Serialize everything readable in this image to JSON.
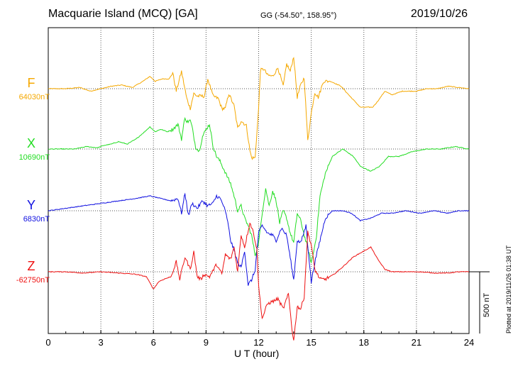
{
  "header": {
    "title": "Macquarie Island (MCQ)  [GA]",
    "coords": "GG (-54.50°, 158.95°)",
    "date": "2019/10/26"
  },
  "footer": {
    "xlabel": "U T (hour)",
    "plotted": "Plotted at 2019/11/26 01:38 UT",
    "scale_label": "500 nT"
  },
  "chart_data": {
    "type": "line",
    "title": "Macquarie Island (MCQ)  [GA]",
    "xlabel": "U T (hour)",
    "ylabel": "",
    "xlim": [
      0,
      24
    ],
    "x_ticks": [
      0,
      3,
      6,
      9,
      12,
      15,
      18,
      21,
      24
    ],
    "grid": true,
    "scale_bar_nT": 500,
    "series": [
      {
        "name": "F",
        "baseline_label": "64030nT",
        "color": "#f5a800",
        "points": [
          [
            0,
            0
          ],
          [
            1,
            0
          ],
          [
            1.8,
            10
          ],
          [
            2.4,
            -20
          ],
          [
            3,
            0
          ],
          [
            3.6,
            20
          ],
          [
            4.2,
            30
          ],
          [
            4.8,
            10
          ],
          [
            5.4,
            60
          ],
          [
            5.8,
            100
          ],
          [
            6.1,
            60
          ],
          [
            6.5,
            80
          ],
          [
            6.9,
            80
          ],
          [
            7.1,
            130
          ],
          [
            7.3,
            -20
          ],
          [
            7.6,
            140
          ],
          [
            7.9,
            -80
          ],
          [
            8.1,
            -160
          ],
          [
            8.3,
            -40
          ],
          [
            8.5,
            -60
          ],
          [
            8.9,
            -60
          ],
          [
            9.1,
            80
          ],
          [
            9.4,
            -60
          ],
          [
            9.7,
            -80
          ],
          [
            9.9,
            -160
          ],
          [
            10.1,
            -160
          ],
          [
            10.3,
            -40
          ],
          [
            10.6,
            -140
          ],
          [
            10.8,
            -320
          ],
          [
            11.0,
            -260
          ],
          [
            11.3,
            -300
          ],
          [
            11.5,
            -500
          ],
          [
            11.6,
            -560
          ],
          [
            11.8,
            -560
          ],
          [
            12.0,
            -160
          ],
          [
            12.1,
            150
          ],
          [
            12.3,
            160
          ],
          [
            12.5,
            110
          ],
          [
            12.8,
            100
          ],
          [
            13.1,
            170
          ],
          [
            13.4,
            20
          ],
          [
            13.6,
            200
          ],
          [
            13.8,
            140
          ],
          [
            14.0,
            260
          ],
          [
            14.2,
            -70
          ],
          [
            14.4,
            30
          ],
          [
            14.6,
            90
          ],
          [
            14.8,
            -420
          ],
          [
            15.0,
            -200
          ],
          [
            15.2,
            -30
          ],
          [
            15.4,
            -70
          ],
          [
            15.7,
            60
          ],
          [
            16.1,
            60
          ],
          [
            16.7,
            20
          ],
          [
            17.2,
            -60
          ],
          [
            17.8,
            -150
          ],
          [
            18.5,
            -150
          ],
          [
            18.8,
            -100
          ],
          [
            19.2,
            -20
          ],
          [
            19.6,
            -50
          ],
          [
            20.2,
            -20
          ],
          [
            21,
            -20
          ],
          [
            21.6,
            0
          ],
          [
            22.2,
            0
          ],
          [
            22.8,
            20
          ],
          [
            23.4,
            10
          ],
          [
            24,
            0
          ]
        ]
      },
      {
        "name": "X",
        "baseline_label": "10690nT",
        "color": "#22dd22",
        "points": [
          [
            0,
            0
          ],
          [
            1.5,
            0
          ],
          [
            2.2,
            20
          ],
          [
            2.8,
            10
          ],
          [
            3.2,
            30
          ],
          [
            3.6,
            40
          ],
          [
            4.0,
            60
          ],
          [
            4.5,
            40
          ],
          [
            5.0,
            80
          ],
          [
            5.5,
            140
          ],
          [
            5.8,
            180
          ],
          [
            6.1,
            140
          ],
          [
            6.4,
            160
          ],
          [
            6.8,
            140
          ],
          [
            7.1,
            160
          ],
          [
            7.4,
            200
          ],
          [
            7.6,
            80
          ],
          [
            7.8,
            260
          ],
          [
            7.9,
            220
          ],
          [
            8.1,
            230
          ],
          [
            8.2,
            180
          ],
          [
            8.4,
            20
          ],
          [
            8.6,
            -20
          ],
          [
            8.8,
            100
          ],
          [
            9.0,
            160
          ],
          [
            9.2,
            200
          ],
          [
            9.4,
            20
          ],
          [
            9.6,
            -60
          ],
          [
            9.8,
            -100
          ],
          [
            10.0,
            -160
          ],
          [
            10.2,
            -220
          ],
          [
            10.4,
            -280
          ],
          [
            10.6,
            -380
          ],
          [
            10.8,
            -500
          ],
          [
            11.0,
            -460
          ],
          [
            11.2,
            -560
          ],
          [
            11.4,
            -620
          ],
          [
            11.6,
            -700
          ],
          [
            11.8,
            -860
          ],
          [
            12.0,
            -760
          ],
          [
            12.2,
            -520
          ],
          [
            12.4,
            -320
          ],
          [
            12.6,
            -460
          ],
          [
            12.8,
            -340
          ],
          [
            13.0,
            -420
          ],
          [
            13.2,
            -600
          ],
          [
            13.4,
            -500
          ],
          [
            13.6,
            -560
          ],
          [
            13.8,
            -680
          ],
          [
            14.0,
            -760
          ],
          [
            14.2,
            -520
          ],
          [
            14.4,
            -580
          ],
          [
            14.6,
            -700
          ],
          [
            14.8,
            -800
          ],
          [
            15.0,
            -920
          ],
          [
            15.1,
            -860
          ],
          [
            15.3,
            -700
          ],
          [
            15.5,
            -380
          ],
          [
            15.8,
            -200
          ],
          [
            16.2,
            -60
          ],
          [
            16.8,
            0
          ],
          [
            17.4,
            -60
          ],
          [
            17.8,
            -140
          ],
          [
            18.4,
            -180
          ],
          [
            18.9,
            -140
          ],
          [
            19.4,
            -60
          ],
          [
            20.0,
            -60
          ],
          [
            20.8,
            -20
          ],
          [
            21.6,
            0
          ],
          [
            22.4,
            0
          ],
          [
            23.2,
            20
          ],
          [
            24,
            0
          ]
        ]
      },
      {
        "name": "Y",
        "baseline_label": "6830nT",
        "color": "#1010e0",
        "points": [
          [
            0,
            0
          ],
          [
            1,
            20
          ],
          [
            2,
            40
          ],
          [
            3,
            60
          ],
          [
            4,
            80
          ],
          [
            5,
            100
          ],
          [
            5.8,
            120
          ],
          [
            6.4,
            100
          ],
          [
            7.0,
            80
          ],
          [
            7.4,
            100
          ],
          [
            7.6,
            -20
          ],
          [
            7.8,
            140
          ],
          [
            8.0,
            -40
          ],
          [
            8.2,
            60
          ],
          [
            8.5,
            20
          ],
          [
            8.8,
            80
          ],
          [
            9.1,
            40
          ],
          [
            9.4,
            60
          ],
          [
            9.6,
            120
          ],
          [
            9.8,
            100
          ],
          [
            10.0,
            40
          ],
          [
            10.2,
            -60
          ],
          [
            10.4,
            -240
          ],
          [
            10.6,
            -320
          ],
          [
            10.8,
            -420
          ],
          [
            11.0,
            -460
          ],
          [
            11.2,
            -320
          ],
          [
            11.4,
            -600
          ],
          [
            11.6,
            -560
          ],
          [
            11.8,
            -480
          ],
          [
            12.0,
            -180
          ],
          [
            12.2,
            -120
          ],
          [
            12.5,
            -180
          ],
          [
            12.8,
            -200
          ],
          [
            13.0,
            -240
          ],
          [
            13.3,
            -140
          ],
          [
            13.6,
            -200
          ],
          [
            13.8,
            -380
          ],
          [
            14.0,
            -560
          ],
          [
            14.2,
            -240
          ],
          [
            14.4,
            -260
          ],
          [
            14.7,
            -120
          ],
          [
            15.0,
            -580
          ],
          [
            15.2,
            -420
          ],
          [
            15.5,
            -240
          ],
          [
            15.8,
            -60
          ],
          [
            16.2,
            0
          ],
          [
            16.8,
            0
          ],
          [
            17.3,
            -20
          ],
          [
            17.8,
            -80
          ],
          [
            18.4,
            -60
          ],
          [
            19.0,
            -20
          ],
          [
            19.6,
            -20
          ],
          [
            20.4,
            0
          ],
          [
            21.2,
            -20
          ],
          [
            22.0,
            0
          ],
          [
            22.8,
            -20
          ],
          [
            23.4,
            0
          ],
          [
            24,
            0
          ]
        ]
      },
      {
        "name": "Z",
        "baseline_label": "-62750nT",
        "color": "#ee1111",
        "points": [
          [
            0,
            0
          ],
          [
            1,
            0
          ],
          [
            2,
            -10
          ],
          [
            3,
            0
          ],
          [
            4,
            -10
          ],
          [
            5,
            -20
          ],
          [
            5.6,
            -40
          ],
          [
            6.0,
            -140
          ],
          [
            6.3,
            -80
          ],
          [
            6.6,
            -60
          ],
          [
            7.0,
            -40
          ],
          [
            7.3,
            80
          ],
          [
            7.5,
            -60
          ],
          [
            7.8,
            120
          ],
          [
            8.1,
            20
          ],
          [
            8.3,
            160
          ],
          [
            8.5,
            -40
          ],
          [
            8.7,
            -60
          ],
          [
            8.9,
            -20
          ],
          [
            9.2,
            -40
          ],
          [
            9.6,
            60
          ],
          [
            9.9,
            -20
          ],
          [
            10.1,
            140
          ],
          [
            10.4,
            100
          ],
          [
            10.6,
            200
          ],
          [
            10.8,
            0
          ],
          [
            11.0,
            300
          ],
          [
            11.2,
            200
          ],
          [
            11.5,
            400
          ],
          [
            11.7,
            320
          ],
          [
            11.9,
            180
          ],
          [
            12.0,
            -120
          ],
          [
            12.2,
            -380
          ],
          [
            12.5,
            -260
          ],
          [
            12.8,
            -240
          ],
          [
            13.1,
            -220
          ],
          [
            13.4,
            -300
          ],
          [
            13.7,
            -180
          ],
          [
            13.9,
            -460
          ],
          [
            14.0,
            -560
          ],
          [
            14.2,
            -280
          ],
          [
            14.4,
            -300
          ],
          [
            14.6,
            -200
          ],
          [
            14.8,
            320
          ],
          [
            15.0,
            220
          ],
          [
            15.2,
            20
          ],
          [
            15.5,
            -60
          ],
          [
            15.8,
            -60
          ],
          [
            16.3,
            -20
          ],
          [
            16.8,
            40
          ],
          [
            17.4,
            120
          ],
          [
            17.9,
            160
          ],
          [
            18.4,
            200
          ],
          [
            18.8,
            100
          ],
          [
            19.2,
            20
          ],
          [
            19.6,
            0
          ],
          [
            20.4,
            0
          ],
          [
            21.2,
            0
          ],
          [
            22.0,
            -10
          ],
          [
            22.8,
            -10
          ],
          [
            23.4,
            0
          ],
          [
            24,
            0
          ]
        ]
      }
    ]
  }
}
